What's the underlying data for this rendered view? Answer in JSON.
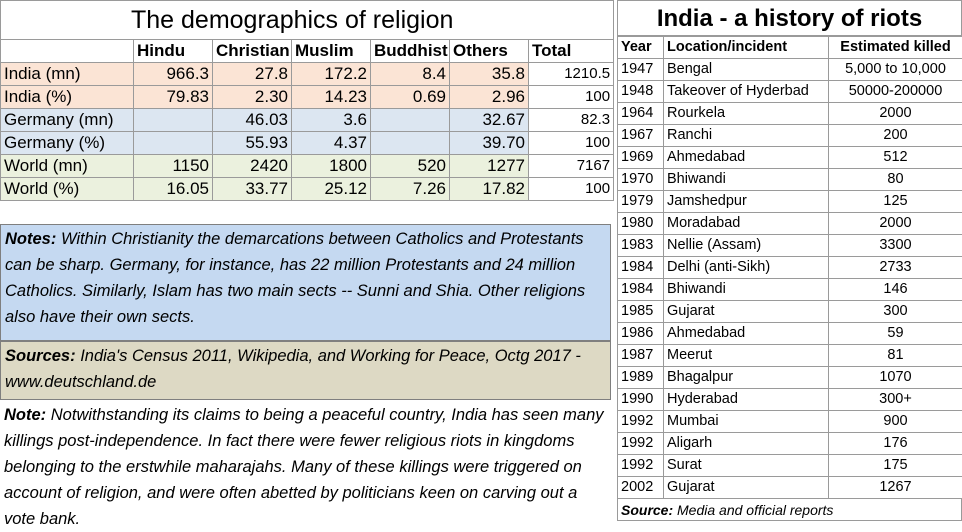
{
  "demographics": {
    "title": "The demographics of religion",
    "headers": [
      "",
      "Hindu",
      "Christian",
      "Muslim",
      "Buddhist",
      "Others",
      "Total"
    ],
    "rows": [
      {
        "label": "India (mn)",
        "cells": [
          "966.3",
          "27.8",
          "172.2",
          "8.4",
          "35.8",
          "1210.5"
        ]
      },
      {
        "label": "India (%)",
        "cells": [
          "79.83",
          "2.30",
          "14.23",
          "0.69",
          "2.96",
          "100"
        ]
      },
      {
        "label": "Germany (mn)",
        "cells": [
          "",
          "46.03",
          "3.6",
          "",
          "32.67",
          "82.3"
        ]
      },
      {
        "label": "Germany (%)",
        "cells": [
          "",
          "55.93",
          "4.37",
          "",
          "39.70",
          "100"
        ]
      },
      {
        "label": "World (mn)",
        "cells": [
          "1150",
          "2420",
          "1800",
          "520",
          "1277",
          "7167"
        ]
      },
      {
        "label": "World (%)",
        "cells": [
          "16.05",
          "33.77",
          "25.12",
          "7.26",
          "17.82",
          "100"
        ]
      }
    ],
    "notes_label": "Notes:",
    "notes_text": "Within Christianity the demarcations between Catholics and Protestants can be sharp.  Germany, for instance, has 22 million Protestants and 24 million Catholics. Similarly, Islam has two main sects -- Sunni and Shia. Other religions also have their own sects.",
    "sources_label": "Sources:",
    "sources_text": "India's Census 2011, Wikipedia,  and Working for Peace, Octg 2017 - www.deutschland.de",
    "note2_label": "Note:",
    "note2_text": "Notwithstanding its claims to being a peaceful country, India has seen many killings post-independence. In fact there were fewer religious riots in kingdoms belonging to the erstwhile maharajahs.  Many of these killings were triggered on account of religion, and were often abetted by politicians keen on carving out a vote bank."
  },
  "riots": {
    "title": "India - a history of riots",
    "headers": [
      "Year",
      "Location/incident",
      "Estimated killed"
    ],
    "rows": [
      [
        "1947",
        "Bengal",
        "5,000 to 10,000"
      ],
      [
        "1948",
        "Takeover of Hyderbad",
        "50000-200000"
      ],
      [
        "1964",
        "Rourkela",
        "2000"
      ],
      [
        "1967",
        "Ranchi",
        "200"
      ],
      [
        "1969",
        "Ahmedabad",
        "512"
      ],
      [
        "1970",
        "Bhiwandi",
        "80"
      ],
      [
        "1979",
        "Jamshedpur",
        "125"
      ],
      [
        "1980",
        "Moradabad",
        "2000"
      ],
      [
        "1983",
        "Nellie (Assam)",
        "3300"
      ],
      [
        "1984",
        "Delhi (anti-Sikh)",
        "2733"
      ],
      [
        "1984",
        "Bhiwandi",
        "146"
      ],
      [
        "1985",
        "Gujarat",
        "300"
      ],
      [
        "1986",
        "Ahmedabad",
        "59"
      ],
      [
        "1987",
        "Meerut",
        "81"
      ],
      [
        "1989",
        "Bhagalpur",
        "1070"
      ],
      [
        "1990",
        "Hyderabad",
        "300+"
      ],
      [
        "1992",
        "Mumbai",
        "900"
      ],
      [
        "1992",
        "Aligarh",
        "176"
      ],
      [
        "1992",
        "Surat",
        "175"
      ],
      [
        "2002",
        "Gujarat",
        "1267"
      ]
    ],
    "source_label": "Source:",
    "source_text": "Media and official reports"
  }
}
